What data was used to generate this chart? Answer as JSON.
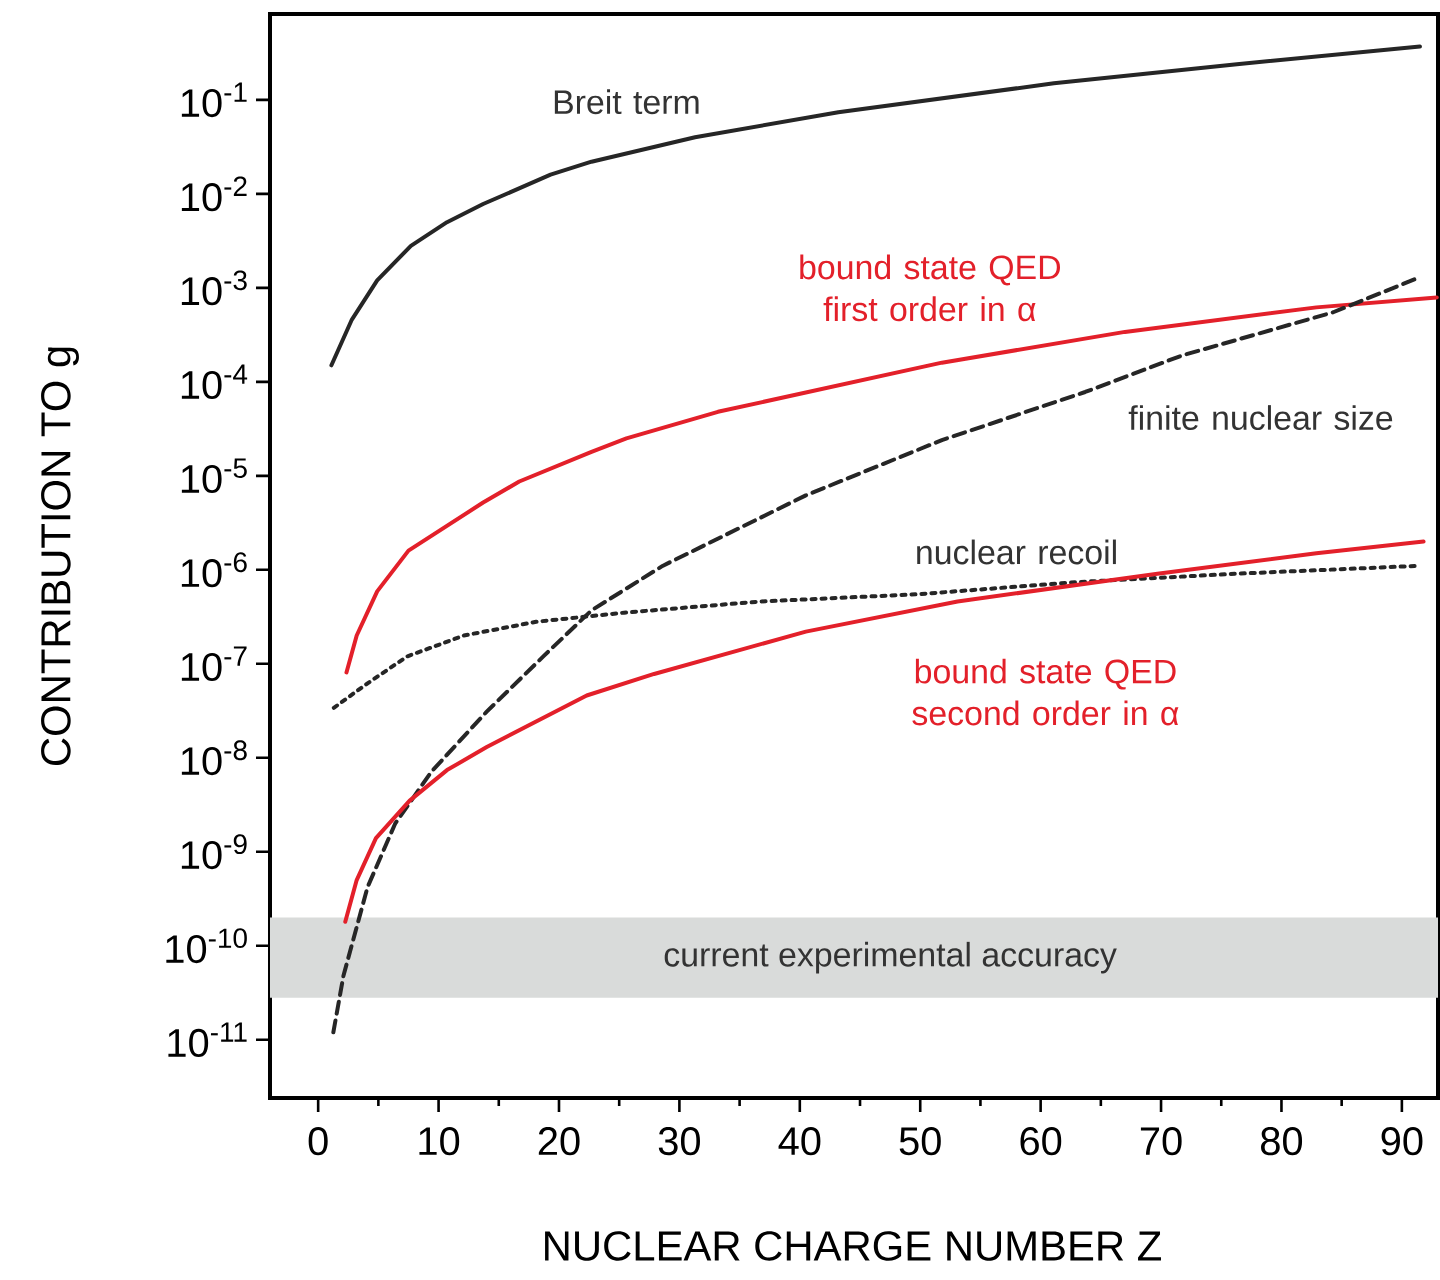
{
  "chart_data": {
    "type": "line",
    "xlabel": "NUCLEAR CHARGE NUMBER Z",
    "ylabel": "CONTRIBUTION TO g",
    "xlim": [
      -4,
      93
    ],
    "xticks": [
      0,
      10,
      20,
      30,
      40,
      50,
      60,
      70,
      80,
      90
    ],
    "ylim": [
      2.4e-12,
      0.82
    ],
    "log": "y",
    "yticks": [
      {
        "value": 0.1,
        "label": "10$^{-1}$"
      },
      {
        "value": 0.01,
        "label": "10$^{-2}$"
      },
      {
        "value": 0.001,
        "label": "10$^{-3}$"
      },
      {
        "value": 0.0001,
        "label": "10$^{-4}$"
      },
      {
        "value": 1e-05,
        "label": "10$^{-5}$"
      },
      {
        "value": 1e-06,
        "label": "10$^{-6}$"
      },
      {
        "value": 1e-07,
        "label": "10$^{-7}$"
      },
      {
        "value": 1e-08,
        "label": "10$^{-8}$"
      },
      {
        "value": 1e-09,
        "label": "10$^{-9}$"
      },
      {
        "value": 1e-10,
        "label": "10$^{-10}$"
      },
      {
        "value": 1e-11,
        "label": "10$^{-11}$"
      }
    ],
    "grid": false,
    "marker": "none",
    "bands": [
      {
        "axis": "y",
        "from": 2.8e-11,
        "to": 2e-10,
        "label": "current experimental accuracy",
        "color": "#d9dbda"
      }
    ],
    "series": [
      {
        "name": "Breit term",
        "color": "#262626",
        "line_style": "solid",
        "x": [
          1.1,
          2.8,
          4.9,
          7.7,
          10.7,
          13.7,
          19.3,
          22.7,
          31.3,
          43.2,
          61.1,
          76.3,
          91.5
        ],
        "values": [
          0.00015,
          0.00046,
          0.0012,
          0.0028,
          0.005,
          0.0078,
          0.016,
          0.022,
          0.04,
          0.074,
          0.15,
          0.24,
          0.37
        ]
      },
      {
        "name": "bound state QED first order in α",
        "color": "#e3202a",
        "line_style": "solid",
        "x": [
          2.35,
          3.2,
          4.9,
          7.5,
          13.7,
          16.7,
          22.7,
          25.6,
          33.2,
          51.8,
          67.0,
          82.9,
          92.9
        ],
        "values": [
          8.1e-08,
          2e-07,
          5.9e-07,
          1.6e-06,
          5.2e-06,
          8.7e-06,
          1.8e-05,
          2.5e-05,
          4.8e-05,
          0.00016,
          0.00034,
          0.00062,
          0.00079
        ]
      },
      {
        "name": "finite nuclear size",
        "color": "#262626",
        "line_style": "dashed",
        "x": [
          1.26,
          2.1,
          4.1,
          6.4,
          9.4,
          14.0,
          18.7,
          22.7,
          28.6,
          40.5,
          51.8,
          63.7,
          71.7,
          84.3,
          91.5
        ],
        "values": [
          1.2e-11,
          4.8e-11,
          4.2e-10,
          2e-09,
          7.1e-09,
          3.1e-08,
          1.2e-07,
          3.7e-07,
          1.1e-06,
          6.2e-06,
          2.4e-05,
          7.8e-05,
          0.00019,
          0.00055,
          0.0013
        ]
      },
      {
        "name": "nuclear recoil",
        "color": "#262626",
        "line_style": "dotted",
        "x": [
          1.3,
          4.1,
          7.4,
          12.1,
          18.1,
          25.4,
          36.7,
          49.8,
          63.0,
          76.3,
          91.2
        ],
        "values": [
          3.4e-08,
          6.2e-08,
          1.2e-07,
          2e-07,
          2.8e-07,
          3.5e-07,
          4.6e-07,
          5.5e-07,
          7.4e-07,
          9.1e-07,
          1.1e-06
        ]
      },
      {
        "name": "bound state QED second order in α",
        "color": "#e3202a",
        "line_style": "solid",
        "x": [
          2.25,
          3.2,
          4.8,
          7.6,
          10.7,
          14.0,
          22.3,
          27.9,
          40.5,
          53.1,
          69.7,
          82.9,
          91.8
        ],
        "values": [
          1.8e-10,
          5e-10,
          1.4e-09,
          3.5e-09,
          7.4e-09,
          1.3e-08,
          4.6e-08,
          7.8e-08,
          2.2e-07,
          4.6e-07,
          9.1e-07,
          1.5e-06,
          2e-06
        ]
      }
    ]
  }
}
